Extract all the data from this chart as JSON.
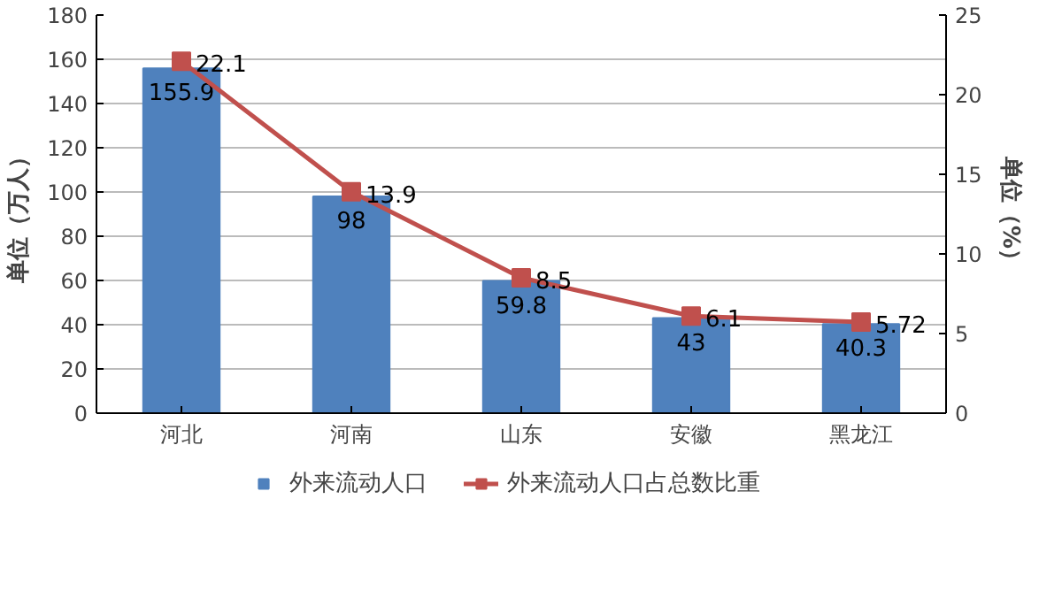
{
  "chart_data": {
    "type": "bar",
    "categories": [
      "河北",
      "河南",
      "山东",
      "安徽",
      "黑龙江"
    ],
    "series": [
      {
        "name": "外来流动人口",
        "color": "#4f81bd",
        "values": [
          155.9,
          98,
          59.8,
          43,
          40.3
        ]
      },
      {
        "name": "外来流动人口占总数比重",
        "type": "line",
        "axis": "y2",
        "color": "#c0504d",
        "marker": "square",
        "values": [
          22.1,
          13.9,
          8.5,
          6.1,
          5.72
        ]
      }
    ],
    "ylabel": "单位（万人）",
    "y2label": "单位（%）",
    "ylim": [
      0,
      180
    ],
    "yticks": [
      0,
      20,
      40,
      60,
      80,
      100,
      120,
      140,
      160,
      180
    ],
    "y2lim": [
      0,
      25
    ],
    "y2ticks": [
      0,
      5,
      10,
      15,
      20,
      25
    ],
    "grid": "y",
    "legend": "bottom",
    "data_labels": true
  }
}
